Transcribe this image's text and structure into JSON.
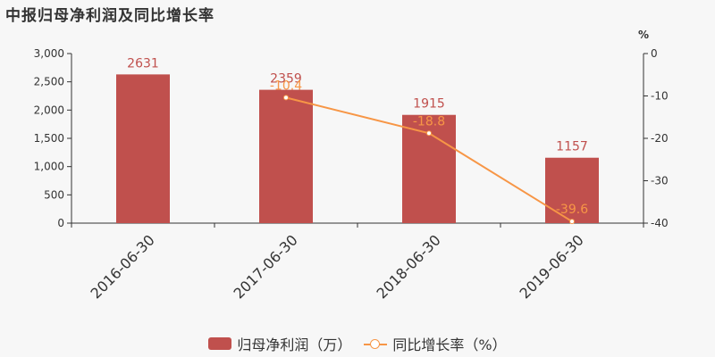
{
  "chart_data": {
    "type": "bar",
    "title": "中报归母净利润及同比增长率",
    "categories": [
      "2016-06-30",
      "2017-06-30",
      "2018-06-30",
      "2019-06-30"
    ],
    "series": [
      {
        "name": "归母净利润（万）",
        "type": "bar",
        "axis": "left",
        "values": [
          2631,
          2359,
          1915,
          1157
        ],
        "labels": [
          "2631",
          "2359",
          "1915",
          "1157"
        ],
        "color": "#c0504d"
      },
      {
        "name": "同比增长率（%）",
        "type": "line",
        "axis": "right",
        "values": [
          null,
          -10.4,
          -18.8,
          -39.6
        ],
        "labels": [
          "",
          "-10.4",
          "-18.8",
          "-39.6"
        ],
        "color": "#f79646"
      }
    ],
    "y_left": {
      "ylim": [
        0,
        3000
      ],
      "ticks": [
        "0",
        "500",
        "1,000",
        "1,500",
        "2,000",
        "2,500",
        "3,000"
      ]
    },
    "y_right": {
      "ylim": [
        -40,
        0
      ],
      "ticks": [
        "-40",
        "-30",
        "-20",
        "-10",
        "0"
      ],
      "unit": "%"
    },
    "grid": false,
    "legend": "bottom-center"
  }
}
